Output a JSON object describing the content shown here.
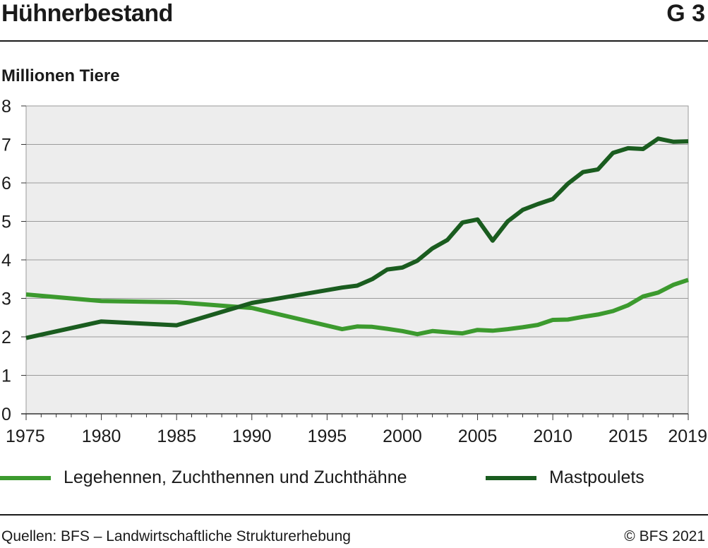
{
  "header": {
    "title": "Hühnerbestand",
    "figure_number": "G 3"
  },
  "footer": {
    "source": "Quellen: BFS – Landwirtschaftliche Strukturerhebung",
    "copyright": "© BFS 2021"
  },
  "colors": {
    "background": "#ededed",
    "legehennen": "#3c9a2e",
    "mastpoulets": "#1a5c1f"
  },
  "chart_data": {
    "type": "line",
    "ylabel": "Millionen Tiere",
    "ylim": [
      0,
      8
    ],
    "xlim": [
      1975,
      2019
    ],
    "yticks": [
      0,
      1,
      2,
      3,
      4,
      5,
      6,
      7,
      8
    ],
    "xticks": [
      1975,
      1980,
      1985,
      1990,
      1995,
      2000,
      2005,
      2010,
      2015,
      2019
    ],
    "grid": "horizontal",
    "legend_position": "bottom",
    "series": [
      {
        "name": "Legehennen, Zuchthennen und Zuchthähne",
        "color": "#3c9a2e",
        "x": [
          1975,
          1980,
          1985,
          1990,
          1996,
          1997,
          1998,
          1999,
          2000,
          2001,
          2002,
          2003,
          2004,
          2005,
          2006,
          2007,
          2008,
          2009,
          2010,
          2011,
          2012,
          2013,
          2014,
          2015,
          2016,
          2017,
          2018,
          2019
        ],
        "y": [
          3.1,
          2.93,
          2.9,
          2.75,
          2.2,
          2.27,
          2.26,
          2.21,
          2.15,
          2.07,
          2.15,
          2.12,
          2.09,
          2.18,
          2.16,
          2.2,
          2.25,
          2.31,
          2.44,
          2.45,
          2.52,
          2.58,
          2.67,
          2.82,
          3.05,
          3.15,
          3.35,
          3.48
        ]
      },
      {
        "name": "Mastpoulets",
        "color": "#1a5c1f",
        "x": [
          1975,
          1980,
          1985,
          1990,
          1996,
          1997,
          1998,
          1999,
          2000,
          2001,
          2002,
          2003,
          2004,
          2005,
          2006,
          2007,
          2008,
          2009,
          2010,
          2011,
          2012,
          2013,
          2014,
          2015,
          2016,
          2017,
          2018,
          2019
        ],
        "y": [
          1.97,
          2.4,
          2.3,
          2.88,
          3.28,
          3.33,
          3.5,
          3.75,
          3.8,
          3.98,
          4.3,
          4.52,
          4.97,
          5.05,
          4.5,
          5.0,
          5.3,
          5.45,
          5.58,
          5.98,
          6.28,
          6.35,
          6.78,
          6.9,
          6.88,
          7.15,
          7.07,
          7.08
        ]
      }
    ]
  }
}
